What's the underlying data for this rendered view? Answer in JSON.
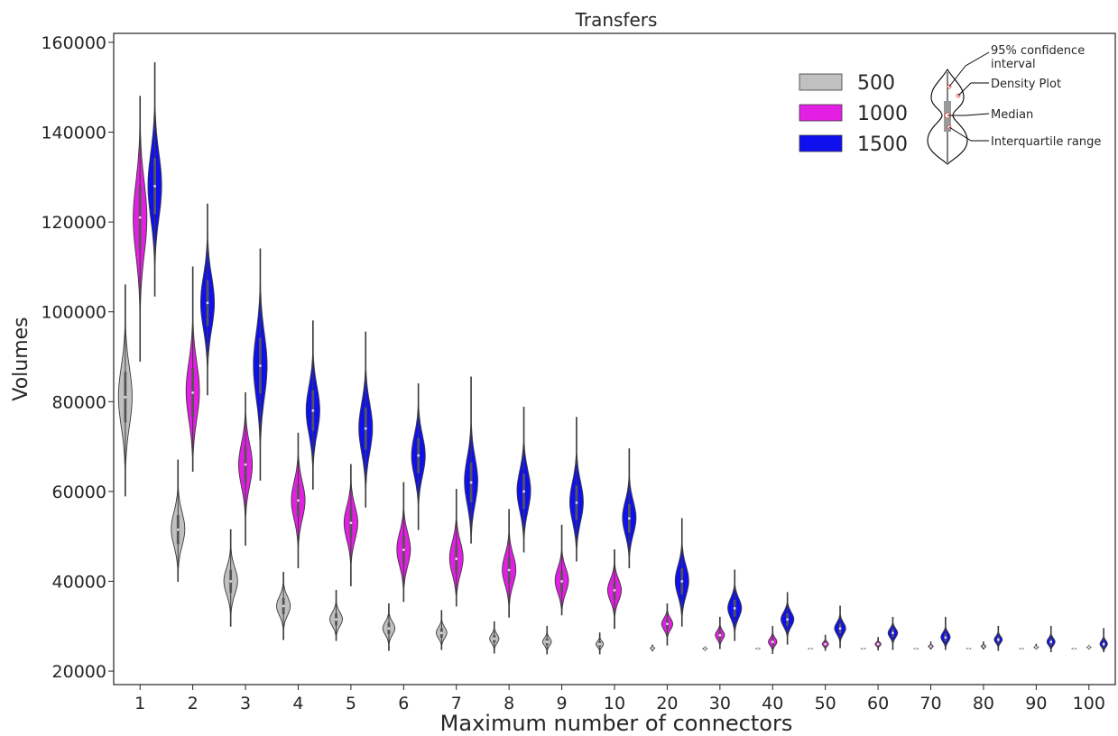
{
  "chart_data": {
    "type": "violin",
    "title": "Transfers",
    "xlabel": "Maximum number of connectors",
    "ylabel": "Volumes",
    "ylim": [
      17000,
      162000
    ],
    "yticks": [
      20000,
      40000,
      60000,
      80000,
      100000,
      120000,
      140000,
      160000
    ],
    "categories": [
      "1",
      "2",
      "3",
      "4",
      "5",
      "6",
      "7",
      "8",
      "9",
      "10",
      "20",
      "30",
      "40",
      "50",
      "60",
      "70",
      "80",
      "90",
      "100"
    ],
    "grid": false,
    "legend_position": "top-right",
    "series": [
      {
        "name": "500",
        "color": "#c0c0c0",
        "median": [
          81000,
          51500,
          40000,
          34500,
          31500,
          29500,
          28500,
          27200,
          26500,
          26000,
          25100,
          25000,
          25000,
          25000,
          25000,
          25000,
          25000,
          25000,
          25000
        ],
        "min": [
          59000,
          40000,
          30000,
          27000,
          26800,
          24600,
          24800,
          24000,
          23800,
          23800,
          24500,
          24600,
          24800,
          24900,
          24900,
          24900,
          24900,
          24900,
          24900
        ],
        "max": [
          106000,
          67000,
          51500,
          42000,
          38000,
          35000,
          33500,
          31000,
          30000,
          28500,
          25800,
          25400,
          25200,
          25100,
          25100,
          25100,
          25100,
          25100,
          25100
        ]
      },
      {
        "name": "1000",
        "color": "#e21fe2",
        "median": [
          121000,
          82000,
          66000,
          58000,
          53000,
          47000,
          45000,
          42500,
          40000,
          38000,
          30500,
          28000,
          26500,
          26000,
          26000,
          25500,
          25500,
          25300,
          25300
        ],
        "min": [
          89000,
          64500,
          48000,
          43000,
          39000,
          35500,
          34500,
          32000,
          32500,
          29500,
          25800,
          25000,
          23900,
          24600,
          24700,
          24900,
          24900,
          24900,
          24900
        ],
        "max": [
          148000,
          110000,
          82000,
          73000,
          66000,
          62000,
          60500,
          56000,
          52500,
          47000,
          35000,
          32000,
          30000,
          28000,
          27500,
          26500,
          26500,
          26000,
          25700
        ]
      },
      {
        "name": "1500",
        "color": "#1010ee",
        "median": [
          128000,
          102000,
          88000,
          78000,
          74000,
          68000,
          62000,
          60000,
          57500,
          54000,
          40000,
          34000,
          31500,
          29500,
          28500,
          27500,
          27000,
          26500,
          26000
        ],
        "min": [
          103500,
          81500,
          62500,
          60500,
          56500,
          51500,
          48500,
          46500,
          44500,
          43000,
          30000,
          26800,
          26000,
          25200,
          24800,
          24800,
          24600,
          24300,
          24300
        ],
        "max": [
          155500,
          124000,
          114000,
          98000,
          95500,
          84000,
          85500,
          78800,
          76500,
          69500,
          54000,
          42500,
          37500,
          34500,
          32000,
          32000,
          30000,
          30000,
          29500
        ]
      }
    ],
    "annotation": {
      "labels": [
        "95% confidence",
        "interval",
        "Density Plot",
        "Median",
        "Interquartile range"
      ]
    }
  }
}
